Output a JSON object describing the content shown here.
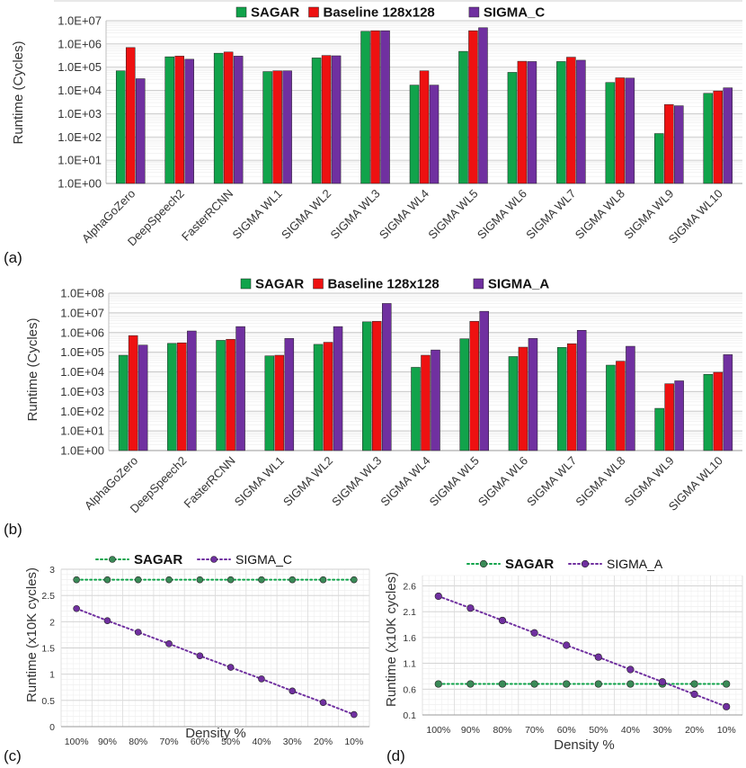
{
  "colors": {
    "sagar": "#11a34b",
    "baseline": "#ee1111",
    "sigma": "#7030a0",
    "sigma_line": "#7030a0",
    "sagar_line": "#11a34b",
    "marker_fill": "#3a8a57"
  },
  "chart_data": [
    {
      "panel_label": "(a)",
      "type": "bar",
      "yscale": "log",
      "ylabel": "Runtime (Cycles)",
      "ylim": [
        1,
        10000000
      ],
      "yticks": [
        "1.0E+00",
        "1.0E+01",
        "1.0E+02",
        "1.0E+03",
        "1.0E+04",
        "1.0E+05",
        "1.0E+06",
        "1.0E+07"
      ],
      "categories": [
        "AlphaGoZero",
        "DeepSpeech2",
        "FasterRCNN",
        "SIGMA WL1",
        "SIGMA WL2",
        "SIGMA WL3",
        "SIGMA WL4",
        "SIGMA WL5",
        "SIGMA WL6",
        "SIGMA WL7",
        "SIGMA WL8",
        "SIGMA WL9",
        "SIGMA WL10"
      ],
      "series": [
        {
          "name": "SAGAR",
          "values": [
            70000,
            280000,
            400000,
            65000,
            250000,
            3500000,
            17000,
            480000,
            60000,
            175000,
            22000,
            140,
            7500
          ]
        },
        {
          "name": "Baseline 128x128",
          "values": [
            700000,
            300000,
            450000,
            70000,
            320000,
            3700000,
            70000,
            3700000,
            180000,
            270000,
            35000,
            2500,
            9500
          ]
        },
        {
          "name": "SIGMA_C",
          "values": [
            32000,
            220000,
            300000,
            70000,
            310000,
            3700000,
            17000,
            5000000,
            175000,
            200000,
            34000,
            2200,
            13000
          ]
        }
      ]
    },
    {
      "panel_label": "(b)",
      "type": "bar",
      "yscale": "log",
      "ylabel": "Runtime (Cycles)",
      "ylim": [
        1,
        100000000
      ],
      "yticks": [
        "1.0E+00",
        "1.0E+01",
        "1.0E+02",
        "1.0E+03",
        "1.0E+04",
        "1.0E+05",
        "1.0E+06",
        "1.0E+07",
        "1.0E+08"
      ],
      "categories": [
        "AlphaGoZero",
        "DeepSpeech2",
        "FasterRCNN",
        "SIGMA WL1",
        "SIGMA WL2",
        "SIGMA WL3",
        "SIGMA WL4",
        "SIGMA WL5",
        "SIGMA WL6",
        "SIGMA WL7",
        "SIGMA WL8",
        "SIGMA WL9",
        "SIGMA WL10"
      ],
      "series": [
        {
          "name": "SAGAR",
          "values": [
            70000,
            280000,
            400000,
            65000,
            250000,
            3500000,
            17000,
            480000,
            60000,
            175000,
            22000,
            140,
            7500
          ]
        },
        {
          "name": "Baseline 128x128",
          "values": [
            700000,
            300000,
            450000,
            70000,
            320000,
            3700000,
            70000,
            3700000,
            180000,
            270000,
            35000,
            2500,
            9500
          ]
        },
        {
          "name": "SIGMA_A",
          "values": [
            230000,
            1200000,
            2000000,
            500000,
            2000000,
            30000000,
            130000,
            12000000,
            500000,
            1300000,
            200000,
            3500,
            75000
          ]
        }
      ]
    },
    {
      "panel_label": "(c)",
      "type": "line",
      "ylabel": "Runtime (x10K cycles)",
      "xlabel": "Density %",
      "ylim": [
        0,
        3
      ],
      "yticks": [
        "0",
        "0.5",
        "1",
        "1.5",
        "2",
        "2.5",
        "3"
      ],
      "ytick_values": [
        0,
        0.5,
        1,
        1.5,
        2,
        2.5,
        3
      ],
      "categories": [
        "100%",
        "90%",
        "80%",
        "70%",
        "60%",
        "50%",
        "40%",
        "30%",
        "20%",
        "10%"
      ],
      "series": [
        {
          "name": "SAGAR",
          "values": [
            2.8,
            2.8,
            2.8,
            2.8,
            2.8,
            2.8,
            2.8,
            2.8,
            2.8,
            2.8
          ]
        },
        {
          "name": "SIGMA_C",
          "values": [
            2.25,
            2.02,
            1.8,
            1.58,
            1.35,
            1.13,
            0.91,
            0.68,
            0.46,
            0.23
          ]
        }
      ]
    },
    {
      "panel_label": "(d)",
      "type": "line",
      "ylabel": "Runtime (x10K cycles)",
      "xlabel": "Density %",
      "ylim": [
        0.1,
        2.8
      ],
      "yticks": [
        "0.1",
        "0.6",
        "1.1",
        "1.6",
        "2.1",
        "2.6"
      ],
      "ytick_values": [
        0.1,
        0.6,
        1.1,
        1.6,
        2.1,
        2.6
      ],
      "categories": [
        "100%",
        "90%",
        "80%",
        "70%",
        "60%",
        "50%",
        "40%",
        "30%",
        "20%",
        "10%"
      ],
      "series": [
        {
          "name": "SAGAR",
          "values": [
            0.7,
            0.7,
            0.7,
            0.7,
            0.7,
            0.7,
            0.7,
            0.7,
            0.7,
            0.7
          ]
        },
        {
          "name": "SIGMA_A",
          "values": [
            2.4,
            2.17,
            1.93,
            1.69,
            1.45,
            1.22,
            0.98,
            0.74,
            0.5,
            0.26
          ]
        }
      ]
    }
  ]
}
